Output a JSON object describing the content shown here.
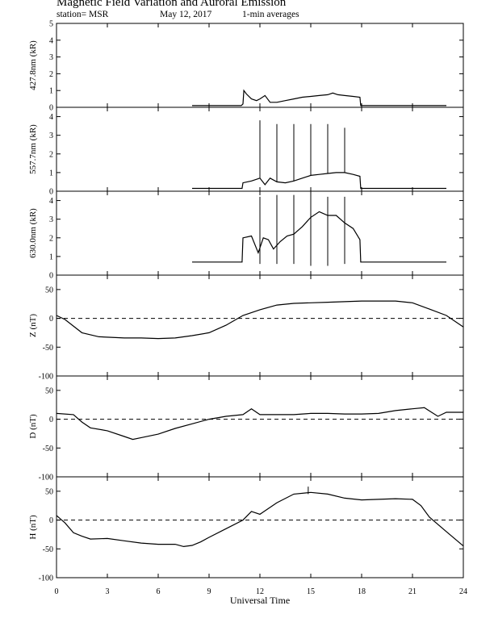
{
  "header": {
    "title": "Magnetic Field Variation and Auroral Emission",
    "station": "station= MSR",
    "date": "May 12, 2017",
    "averaging": "1-min averages"
  },
  "chart_data": [
    {
      "type": "line",
      "ylabel": "427.8nm (kR)",
      "ylim": [
        0,
        5
      ],
      "yticks": [
        "0",
        "1",
        "2",
        "3",
        "4",
        "5"
      ],
      "x": [
        8.0,
        8.5,
        9,
        10,
        10.9,
        11.0,
        11.05,
        11.2,
        11.5,
        11.8,
        12.0,
        12.3,
        12.6,
        13.0,
        13.5,
        14.0,
        14.5,
        15.0,
        15.5,
        16.0,
        16.3,
        16.6,
        17.0,
        17.5,
        17.9,
        17.95,
        18.5,
        20.0,
        22.0,
        23.0
      ],
      "y": [
        0.1,
        0.1,
        0.1,
        0.1,
        0.1,
        0.2,
        1.0,
        0.8,
        0.5,
        0.4,
        0.5,
        0.7,
        0.3,
        0.3,
        0.4,
        0.5,
        0.6,
        0.65,
        0.7,
        0.75,
        0.85,
        0.75,
        0.7,
        0.65,
        0.6,
        0.1,
        0.1,
        0.1,
        0.1,
        0.1
      ]
    },
    {
      "type": "line",
      "ylabel": "557.7nm (kR)",
      "ylim": [
        0,
        4.5
      ],
      "yticks": [
        "0",
        "1",
        "2",
        "3",
        "4"
      ],
      "x": [
        8.0,
        9,
        10,
        10.95,
        11.0,
        11.5,
        12.0,
        12.3,
        12.6,
        13.0,
        13.5,
        14.0,
        14.5,
        15.0,
        15.5,
        16.0,
        16.5,
        17.0,
        17.5,
        17.9,
        17.95,
        19,
        21,
        23.0
      ],
      "y": [
        0.15,
        0.15,
        0.15,
        0.15,
        0.45,
        0.55,
        0.7,
        0.35,
        0.7,
        0.5,
        0.45,
        0.55,
        0.7,
        0.85,
        0.9,
        0.95,
        1.0,
        1.0,
        0.9,
        0.8,
        0.15,
        0.15,
        0.15,
        0.15
      ],
      "spikes": [
        {
          "x": 12,
          "top": 3.8
        },
        {
          "x": 13,
          "top": 3.6
        },
        {
          "x": 14,
          "top": 3.6
        },
        {
          "x": 15,
          "top": 3.6
        },
        {
          "x": 16,
          "top": 3.6
        },
        {
          "x": 17,
          "top": 3.4
        }
      ]
    },
    {
      "type": "line",
      "ylabel": "630.0nm (kR)",
      "ylim": [
        0,
        4.5
      ],
      "yticks": [
        "0",
        "1",
        "2",
        "3",
        "4"
      ],
      "x": [
        8.0,
        9,
        10,
        10.95,
        11.0,
        11.5,
        11.9,
        12.2,
        12.5,
        12.8,
        13.2,
        13.6,
        14.0,
        14.5,
        15.0,
        15.5,
        16.0,
        16.5,
        17.0,
        17.5,
        17.9,
        17.95,
        19,
        21,
        23.0
      ],
      "y": [
        0.7,
        0.7,
        0.7,
        0.7,
        2.0,
        2.1,
        1.2,
        2.0,
        1.9,
        1.4,
        1.8,
        2.1,
        2.2,
        2.6,
        3.1,
        3.4,
        3.2,
        3.2,
        2.8,
        2.5,
        1.9,
        0.7,
        0.7,
        0.7,
        0.7
      ],
      "spikes": [
        {
          "x": 12,
          "top": 4.2,
          "bottom": 0.6
        },
        {
          "x": 13,
          "top": 4.3,
          "bottom": 0.6
        },
        {
          "x": 14,
          "top": 4.3,
          "bottom": 0.6
        },
        {
          "x": 15,
          "top": 4.3,
          "bottom": 0.5
        },
        {
          "x": 16,
          "top": 4.2,
          "bottom": 0.5
        },
        {
          "x": 17,
          "top": 4.2,
          "bottom": 0.6
        }
      ]
    },
    {
      "type": "line",
      "ylabel": "Z (nT)",
      "ylim": [
        -100,
        75
      ],
      "yticks": [
        "-100",
        "-50",
        "0",
        "50"
      ],
      "zero_dashed": true,
      "x": [
        0,
        0.5,
        1.5,
        2.5,
        4,
        5,
        6,
        7,
        8,
        9,
        10,
        11,
        12,
        13,
        14,
        15,
        16,
        17,
        18,
        19,
        20,
        21,
        22,
        23,
        24
      ],
      "y": [
        5,
        -2,
        -25,
        -32,
        -34,
        -34,
        -35,
        -34,
        -30,
        -25,
        -12,
        5,
        15,
        23,
        26,
        27,
        28,
        29,
        30,
        30,
        30,
        27,
        16,
        5,
        -15
      ]
    },
    {
      "type": "line",
      "ylabel": "D (nT)",
      "ylim": [
        -100,
        75
      ],
      "yticks": [
        "-100",
        "-50",
        "0",
        "50"
      ],
      "zero_dashed": true,
      "x": [
        0,
        1,
        1.5,
        2,
        3,
        4,
        4.5,
        5,
        6,
        7,
        8,
        9,
        10,
        11,
        11.5,
        12,
        13,
        14,
        15,
        16,
        17,
        18,
        19,
        20,
        21,
        21.7,
        22.5,
        23,
        24
      ],
      "y": [
        10,
        8,
        -5,
        -15,
        -20,
        -30,
        -35,
        -32,
        -26,
        -16,
        -8,
        0,
        5,
        8,
        18,
        8,
        8,
        8,
        10,
        10,
        9,
        9,
        10,
        15,
        18,
        20,
        5,
        12,
        12
      ]
    },
    {
      "type": "line",
      "ylabel": "H (nT)",
      "ylim": [
        -100,
        75
      ],
      "yticks": [
        "-100",
        "-50",
        "0",
        "50"
      ],
      "zero_dashed": true,
      "x": [
        0,
        0.5,
        1,
        1.5,
        2,
        3,
        4,
        5,
        6,
        7,
        7.5,
        8,
        8.5,
        9,
        10,
        11,
        11.5,
        12,
        13,
        14,
        15,
        16,
        17,
        18,
        19,
        20,
        21,
        21.5,
        22,
        23,
        24
      ],
      "y": [
        8,
        -5,
        -22,
        -28,
        -33,
        -32,
        -36,
        -40,
        -42,
        -42,
        -46,
        -44,
        -38,
        -30,
        -15,
        0,
        15,
        10,
        30,
        45,
        48,
        45,
        38,
        35,
        36,
        37,
        36,
        25,
        5,
        -20,
        -45
      ],
      "spikes": [
        {
          "x": 14.85,
          "top": 58,
          "bottom": 45
        }
      ]
    }
  ],
  "xaxis": {
    "label": "Universal Time",
    "range": [
      0,
      24
    ],
    "ticks": [
      "0",
      "3",
      "6",
      "9",
      "12",
      "15",
      "18",
      "21",
      "24"
    ]
  }
}
